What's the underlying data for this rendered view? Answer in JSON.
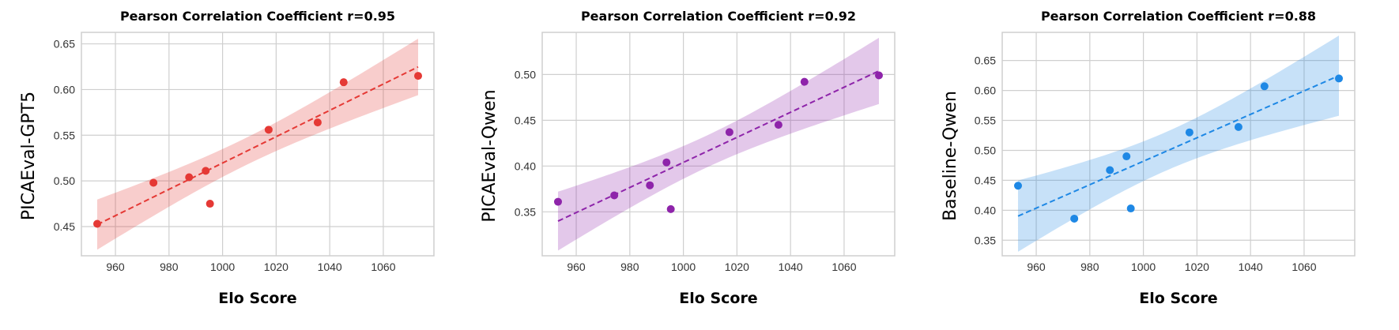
{
  "chart_data": [
    {
      "type": "scatter",
      "title": "Pearson Correlation Coefficient r=0.95",
      "xlabel": "Elo Score",
      "ylabel": "PICAEval-GPT5",
      "color": "#e53935",
      "xlim": [
        947.3,
        1078.9
      ],
      "ylim": [
        0.418,
        0.6626
      ],
      "xticks": [
        960,
        980,
        1000,
        1020,
        1040,
        1060
      ],
      "xtick_labels": [
        "960",
        "980",
        "1000",
        "1020",
        "1040",
        "1060"
      ],
      "yticks": [
        0.45,
        0.5,
        0.55,
        0.6,
        0.65
      ],
      "ytick_labels": [
        "0.45",
        "0.50",
        "0.55",
        "0.60",
        "0.65"
      ],
      "grid": true,
      "fit": "linear regression, dashed, with 95% confidence band",
      "x": [
        953.2,
        974.2,
        987.5,
        993.7,
        995.3,
        1017.2,
        1035.5,
        1045.2,
        1073.0
      ],
      "y": [
        0.453,
        0.498,
        0.504,
        0.511,
        0.475,
        0.556,
        0.564,
        0.608,
        0.615
      ]
    },
    {
      "type": "scatter",
      "title": "Pearson Correlation Coefficient r=0.92",
      "xlabel": "Elo Score",
      "ylabel": "PICAEval-Qwen",
      "color": "#8e24aa",
      "xlim": [
        947.3,
        1078.9
      ],
      "ylim": [
        0.302,
        0.546
      ],
      "xticks": [
        960,
        980,
        1000,
        1020,
        1040,
        1060
      ],
      "xtick_labels": [
        "960",
        "980",
        "1000",
        "1020",
        "1040",
        "1060"
      ],
      "yticks": [
        0.35,
        0.4,
        0.45,
        0.5
      ],
      "ytick_labels": [
        "0.35",
        "0.40",
        "0.45",
        "0.50"
      ],
      "grid": true,
      "fit": "linear regression, dashed, with 95% confidence band",
      "x": [
        953.2,
        974.2,
        987.5,
        993.7,
        995.3,
        1017.2,
        1035.5,
        1045.2,
        1073.0
      ],
      "y": [
        0.361,
        0.368,
        0.379,
        0.404,
        0.353,
        0.437,
        0.445,
        0.492,
        0.499
      ]
    },
    {
      "type": "scatter",
      "title": "Pearson Correlation Coefficient r=0.88",
      "xlabel": "Elo Score",
      "ylabel": "Baseline-Qwen",
      "color": "#1e88e5",
      "xlim": [
        947.3,
        1078.9
      ],
      "ylim": [
        0.324,
        0.697
      ],
      "xticks": [
        960,
        980,
        1000,
        1020,
        1040,
        1060
      ],
      "xtick_labels": [
        "960",
        "980",
        "1000",
        "1020",
        "1040",
        "1060"
      ],
      "yticks": [
        0.35,
        0.4,
        0.45,
        0.5,
        0.55,
        0.6,
        0.65
      ],
      "ytick_labels": [
        "0.35",
        "0.40",
        "0.45",
        "0.50",
        "0.55",
        "0.60",
        "0.65"
      ],
      "grid": true,
      "fit": "linear regression, dashed, with 95% confidence band",
      "x": [
        953.2,
        974.2,
        987.5,
        993.7,
        995.3,
        1017.2,
        1035.5,
        1045.2,
        1073.0
      ],
      "y": [
        0.441,
        0.386,
        0.467,
        0.49,
        0.403,
        0.53,
        0.539,
        0.607,
        0.62
      ]
    }
  ]
}
